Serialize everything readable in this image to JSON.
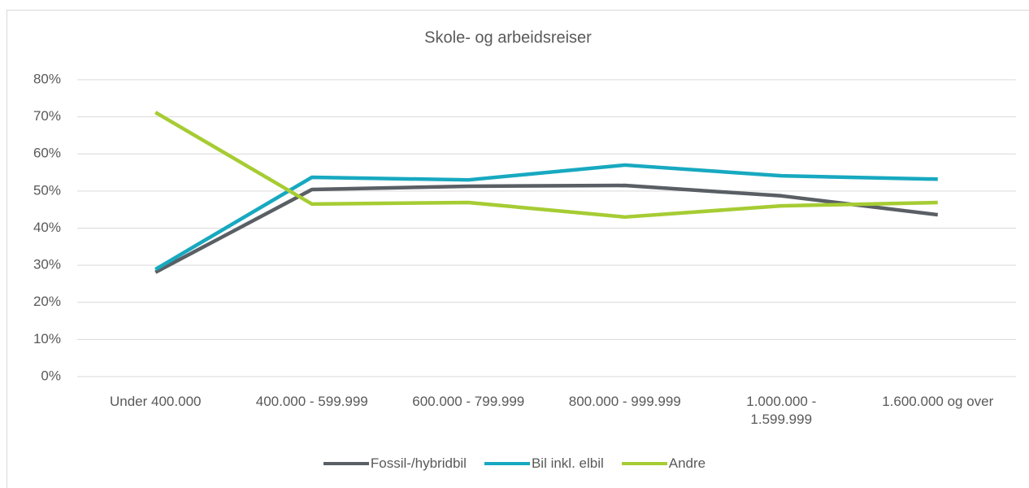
{
  "chart_data": {
    "type": "line",
    "title": "Skole- og arbeidsreiser",
    "categories": [
      "Under 400.000",
      "400.000 - 599.999",
      "600.000 - 799.999",
      "800.000 - 999.999",
      "1.000.000 - 1.599.999",
      "1.600.000 og over"
    ],
    "series": [
      {
        "name": "Fossil-/hybridbil",
        "color": "#595f64",
        "values": [
          28.1,
          50.4,
          51.3,
          51.5,
          48.7,
          43.6
        ]
      },
      {
        "name": "Bil inkl. elbil",
        "color": "#17a9c0",
        "values": [
          28.9,
          53.7,
          53.0,
          57.0,
          54.1,
          53.2
        ]
      },
      {
        "name": "Andre",
        "color": "#a6cc33",
        "values": [
          71.2,
          46.5,
          46.9,
          43.0,
          46.0,
          46.9
        ]
      }
    ],
    "ylim": [
      0,
      80
    ],
    "yticks": [
      {
        "value": 0,
        "label": "0%"
      },
      {
        "value": 10,
        "label": "10%"
      },
      {
        "value": 20,
        "label": "20%"
      },
      {
        "value": 30,
        "label": "30%"
      },
      {
        "value": 40,
        "label": "40%"
      },
      {
        "value": 50,
        "label": "50%"
      },
      {
        "value": 60,
        "label": "60%"
      },
      {
        "value": 70,
        "label": "70%"
      },
      {
        "value": 80,
        "label": "80%"
      }
    ],
    "grid": true,
    "legend": "bottom"
  }
}
